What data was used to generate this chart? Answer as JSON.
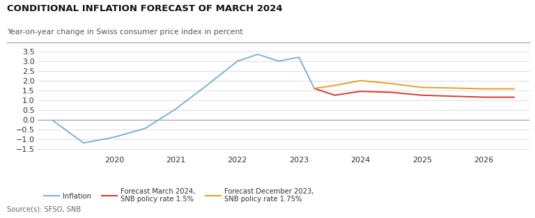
{
  "title": "CONDITIONAL INFLATION FORECAST OF MARCH 2024",
  "subtitle": "Year-on-year change in Swiss consumer price index in percent",
  "source": "Source(s): SFSO, SNB",
  "background_color": "#ffffff",
  "plot_bg_color": "#ffffff",
  "inflation_x": [
    2019.0,
    2019.5,
    2020.0,
    2020.5,
    2021.0,
    2021.5,
    2022.0,
    2022.33,
    2022.67,
    2023.0,
    2023.25
  ],
  "inflation_y": [
    -0.05,
    -1.2,
    -0.9,
    -0.45,
    0.55,
    1.75,
    3.0,
    3.35,
    3.0,
    3.2,
    1.6
  ],
  "forecast_march_x": [
    2023.25,
    2023.58,
    2024.0,
    2024.5,
    2025.0,
    2025.5,
    2026.0,
    2026.5
  ],
  "forecast_march_y": [
    1.6,
    1.25,
    1.45,
    1.4,
    1.25,
    1.2,
    1.15,
    1.15
  ],
  "forecast_dec_x": [
    2023.25,
    2023.58,
    2024.0,
    2024.5,
    2025.0,
    2025.5,
    2026.0,
    2026.5
  ],
  "forecast_dec_y": [
    1.6,
    1.75,
    2.0,
    1.85,
    1.65,
    1.62,
    1.58,
    1.58
  ],
  "inflation_color": "#7ab3d0",
  "forecast_march_color": "#d63b2f",
  "forecast_dec_color": "#e8a020",
  "ylim": [
    -1.75,
    3.9
  ],
  "yticks": [
    -1.5,
    -1.0,
    -0.5,
    0.0,
    0.5,
    1.0,
    1.5,
    2.0,
    2.5,
    3.0,
    3.5
  ],
  "xlim": [
    2018.75,
    2026.75
  ],
  "xticks": [
    2020,
    2021,
    2022,
    2023,
    2024,
    2025,
    2026
  ],
  "vline_x": 2023.25,
  "legend_inflation": "Inflation",
  "legend_march": "Forecast March 2024,\nSNB policy rate 1.5%",
  "legend_dec": "Forecast December 2023,\nSNB policy rate 1.75%",
  "grid_color": "#dddddd",
  "zero_line_color": "#999999",
  "spine_color": "#cccccc"
}
